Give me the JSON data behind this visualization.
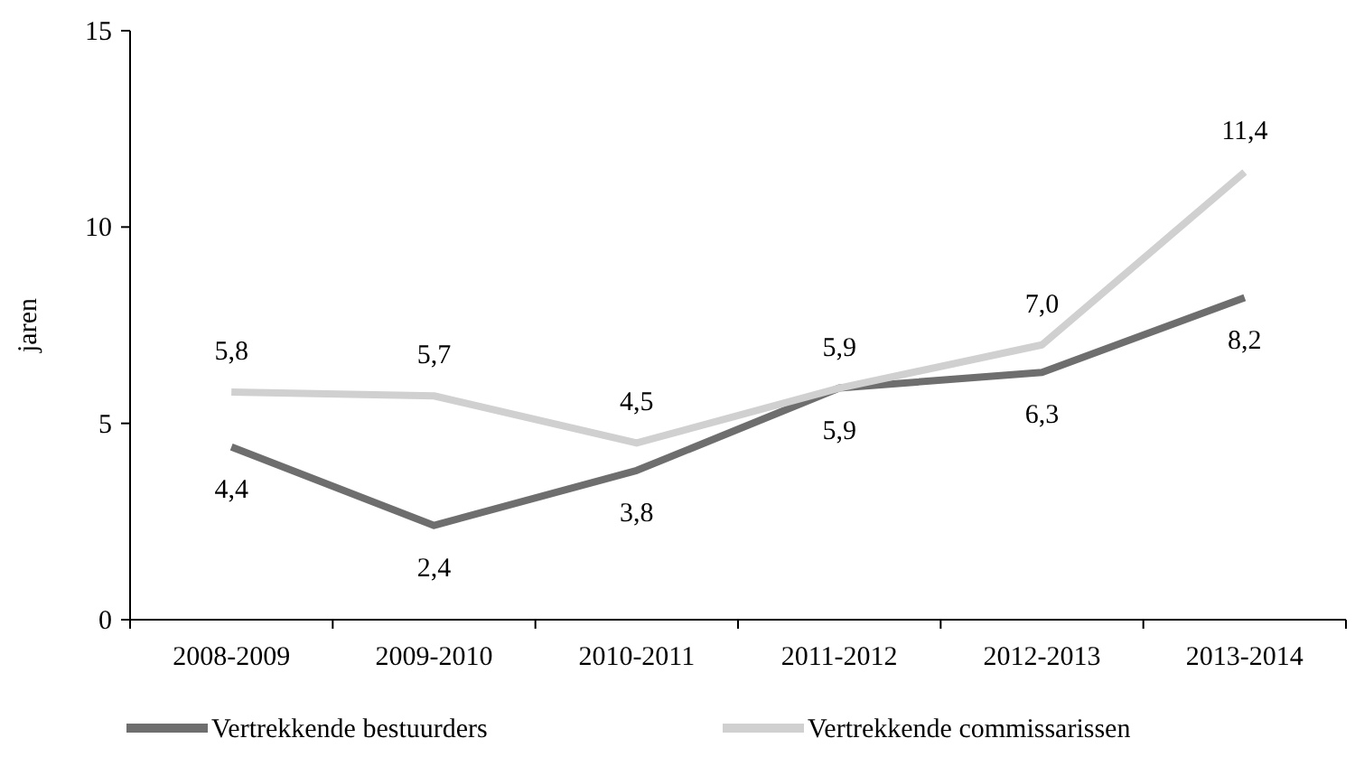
{
  "chart_data": {
    "type": "line",
    "ylabel": "jaren",
    "categories": [
      "2008-2009",
      "2009-2010",
      "2010-2011",
      "2011-2012",
      "2012-2013",
      "2013-2014"
    ],
    "ylim": [
      0,
      15
    ],
    "yticks": [
      0,
      5,
      10,
      15
    ],
    "grid": false,
    "legend": "bottom",
    "marker": "none",
    "line_style": "solid",
    "series": [
      {
        "name": "Vertrekkende bestuurders",
        "color": "#6e6e6e",
        "values": [
          4.4,
          2.4,
          3.8,
          5.9,
          6.3,
          8.2
        ],
        "value_labels": [
          "4,4",
          "2,4",
          "3,8",
          "5,9",
          "6,3",
          "8,2"
        ]
      },
      {
        "name": "Vertrekkende commissarissen",
        "color": "#d0d0d0",
        "values": [
          5.8,
          5.7,
          4.5,
          5.9,
          7.0,
          11.4
        ],
        "value_labels": [
          "5,8",
          "5,7",
          "4,5",
          "5,9",
          "7,0",
          "11,4"
        ]
      }
    ]
  }
}
